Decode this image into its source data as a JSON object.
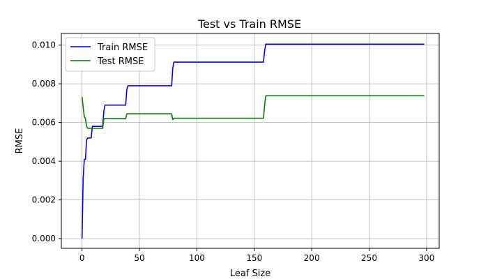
{
  "chart_data": {
    "type": "line",
    "title": "Test vs Train RMSE",
    "xlabel": "Leaf Size",
    "ylabel": "RMSE",
    "xlim": [
      -18,
      311
    ],
    "ylim": [
      -0.0005,
      0.0106
    ],
    "xticks": [
      0,
      50,
      100,
      150,
      200,
      250,
      300
    ],
    "yticks": [
      0.0,
      0.002,
      0.004,
      0.006,
      0.008,
      0.01
    ],
    "xtick_labels": [
      "0",
      "50",
      "100",
      "150",
      "200",
      "250",
      "300"
    ],
    "ytick_labels": [
      "0.000",
      "0.002",
      "0.004",
      "0.006",
      "0.008",
      "0.010"
    ],
    "grid": true,
    "legend_position": "top-left",
    "series": [
      {
        "name": "Train RMSE",
        "color": "#0000ff",
        "points": [
          [
            0,
            0.0
          ],
          [
            1,
            0.0031
          ],
          [
            2,
            0.0041
          ],
          [
            3,
            0.0041
          ],
          [
            4,
            0.0051
          ],
          [
            5,
            0.0052
          ],
          [
            8,
            0.0052
          ],
          [
            9,
            0.0058
          ],
          [
            18,
            0.0058
          ],
          [
            19,
            0.0066
          ],
          [
            20,
            0.0069
          ],
          [
            38,
            0.0069
          ],
          [
            39,
            0.0077
          ],
          [
            40,
            0.0079
          ],
          [
            78,
            0.0079
          ],
          [
            79,
            0.0088
          ],
          [
            80,
            0.00912
          ],
          [
            158,
            0.00912
          ],
          [
            159,
            0.0097
          ],
          [
            160,
            0.01005
          ],
          [
            298,
            0.01005
          ]
        ]
      },
      {
        "name": "Test RMSE",
        "color": "#008000",
        "points": [
          [
            0,
            0.00732
          ],
          [
            1,
            0.0068
          ],
          [
            2,
            0.0063
          ],
          [
            3,
            0.0062
          ],
          [
            4,
            0.0058
          ],
          [
            5,
            0.0057
          ],
          [
            18,
            0.0057
          ],
          [
            19,
            0.0062
          ],
          [
            38,
            0.0062
          ],
          [
            39,
            0.00645
          ],
          [
            78,
            0.00645
          ],
          [
            79,
            0.00615
          ],
          [
            80,
            0.00622
          ],
          [
            158,
            0.00622
          ],
          [
            159,
            0.0069
          ],
          [
            160,
            0.00738
          ],
          [
            298,
            0.00738
          ]
        ]
      }
    ]
  }
}
